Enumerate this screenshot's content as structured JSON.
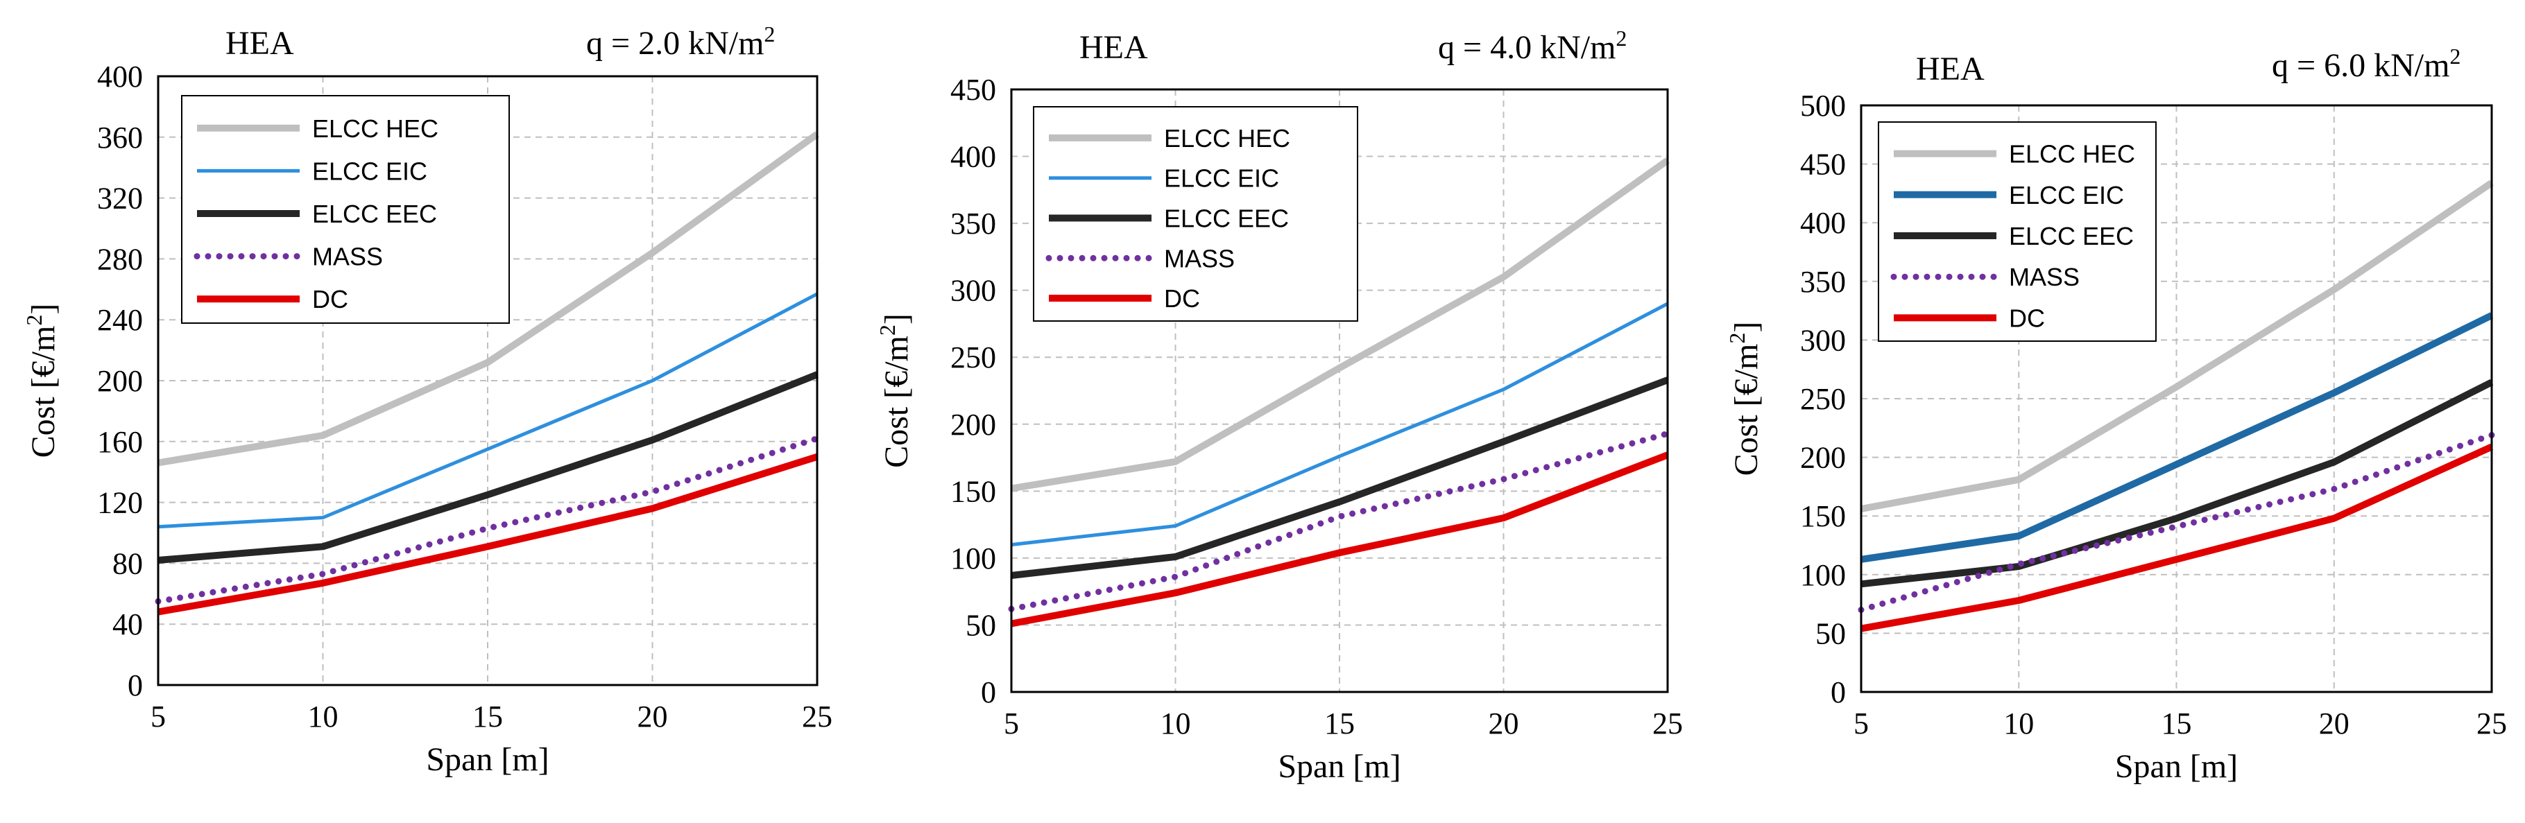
{
  "chart_data": [
    {
      "type": "line",
      "title": "HEA",
      "load_label": "q = 2.0 kN/m",
      "load_unit_sup": "2",
      "xlabel": "Span [m]",
      "ylabel": "Cost [€/m",
      "ylabel_sup": "2",
      "ylabel_end": "]",
      "x": [
        5,
        10,
        15,
        20,
        25
      ],
      "xlim": [
        5,
        25
      ],
      "ylim": [
        0,
        400
      ],
      "yticks": [
        0,
        40,
        80,
        120,
        160,
        200,
        240,
        280,
        320,
        360,
        400
      ],
      "grid": true,
      "legend_position": "top-left",
      "series": [
        {
          "name": "ELCC HEC",
          "values": [
            146,
            164,
            212,
            284,
            362
          ],
          "color": "#bfbfbf",
          "style": "solid-thick"
        },
        {
          "name": "ELCC EIC",
          "values": [
            104,
            110,
            155,
            200,
            257
          ],
          "color": "#2e8fde",
          "style": "solid"
        },
        {
          "name": "ELCC EEC",
          "values": [
            82,
            91,
            125,
            161,
            204
          ],
          "color": "#262626",
          "style": "solid-thick"
        },
        {
          "name": "MASS",
          "values": [
            55,
            73,
            103,
            127,
            162
          ],
          "color": "#7030a0",
          "style": "dotted"
        },
        {
          "name": "DC",
          "values": [
            48,
            67,
            91,
            116,
            150
          ],
          "color": "#e00000",
          "style": "solid-thick"
        }
      ]
    },
    {
      "type": "line",
      "title": "HEA",
      "load_label": "q = 4.0 kN/m",
      "load_unit_sup": "2",
      "xlabel": "Span [m]",
      "ylabel": "Cost [€/m",
      "ylabel_sup": "2",
      "ylabel_end": "]",
      "x": [
        5,
        10,
        15,
        20,
        25
      ],
      "xlim": [
        5,
        25
      ],
      "ylim": [
        0,
        450
      ],
      "yticks": [
        0,
        50,
        100,
        150,
        200,
        250,
        300,
        350,
        400,
        450
      ],
      "grid": true,
      "legend_position": "top-left",
      "series": [
        {
          "name": "ELCC HEC",
          "values": [
            152,
            172,
            242,
            310,
            397
          ],
          "color": "#bfbfbf",
          "style": "solid-thick"
        },
        {
          "name": "ELCC EIC",
          "values": [
            110,
            124,
            176,
            226,
            290
          ],
          "color": "#2e8fde",
          "style": "solid"
        },
        {
          "name": "ELCC EEC",
          "values": [
            87,
            101,
            142,
            187,
            233
          ],
          "color": "#262626",
          "style": "solid-thick"
        },
        {
          "name": "MASS",
          "values": [
            62,
            86,
            131,
            159,
            193
          ],
          "color": "#7030a0",
          "style": "dotted"
        },
        {
          "name": "DC",
          "values": [
            51,
            74,
            104,
            130,
            177
          ],
          "color": "#e00000",
          "style": "solid-thick"
        }
      ]
    },
    {
      "type": "line",
      "title": "HEA",
      "load_label": "q = 6.0 kN/m",
      "load_unit_sup": "2",
      "xlabel": "Span [m]",
      "ylabel": "Cost [€/m",
      "ylabel_sup": "2",
      "ylabel_end": "]",
      "x": [
        5,
        10,
        15,
        20,
        25
      ],
      "xlim": [
        5,
        25
      ],
      "ylim": [
        0,
        500
      ],
      "yticks": [
        0,
        50,
        100,
        150,
        200,
        250,
        300,
        350,
        400,
        450,
        500
      ],
      "grid": true,
      "legend_position": "top-left",
      "series": [
        {
          "name": "ELCC HEC",
          "values": [
            156,
            181,
            260,
            343,
            434
          ],
          "color": "#bfbfbf",
          "style": "solid-thick"
        },
        {
          "name": "ELCC EIC",
          "values": [
            113,
            133,
            194,
            255,
            321
          ],
          "color": "#1f6aa5",
          "style": "solid-thick"
        },
        {
          "name": "ELCC EEC",
          "values": [
            92,
            107,
            148,
            196,
            264
          ],
          "color": "#262626",
          "style": "solid-thick"
        },
        {
          "name": "MASS",
          "values": [
            70,
            109,
            141,
            173,
            219
          ],
          "color": "#7030a0",
          "style": "dotted"
        },
        {
          "name": "DC",
          "values": [
            54,
            78,
            113,
            148,
            209
          ],
          "color": "#e00000",
          "style": "solid-thick"
        }
      ]
    }
  ]
}
